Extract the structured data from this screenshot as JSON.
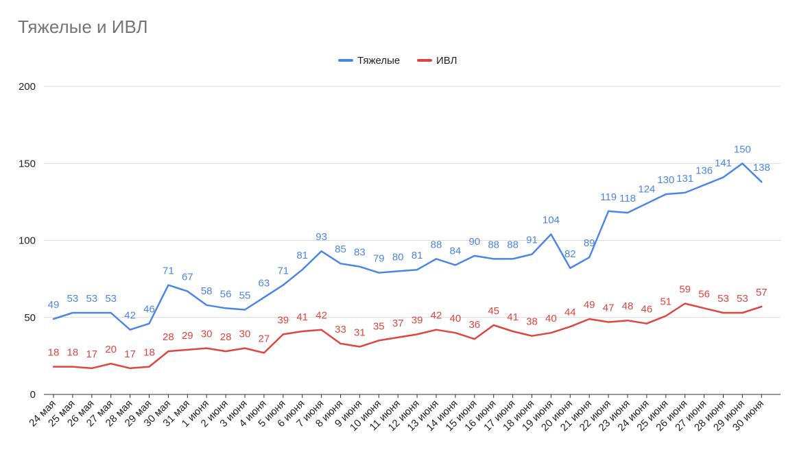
{
  "chart_data": {
    "type": "line",
    "title": "Тяжелые и ИВЛ",
    "xlabel": "",
    "ylabel": "",
    "ylim": [
      0,
      200
    ],
    "yticks": [
      0,
      50,
      100,
      150,
      200
    ],
    "grid": true,
    "legend_position": "top",
    "categories": [
      "24 мая",
      "25 мая",
      "26 мая",
      "27 мая",
      "28 мая",
      "29 мая",
      "30 мая",
      "31 мая",
      "1 июня",
      "2 июня",
      "3 июня",
      "4 июня",
      "5 июня",
      "6 июня",
      "7 июня",
      "8 июня",
      "9 июня",
      "10 июня",
      "11 июня",
      "12 июня",
      "13 июня",
      "14 июня",
      "15 июня",
      "16 июня",
      "17 июня",
      "18 июня",
      "19 июня",
      "20 июня",
      "21 июня",
      "22 июня",
      "23 июня",
      "24 июня",
      "25 июня",
      "26 июня",
      "27 июня",
      "28 июня",
      "29 июня",
      "30 июня"
    ],
    "series": [
      {
        "name": "Тяжелые",
        "color": "#4a86e8",
        "values": [
          49,
          53,
          53,
          53,
          42,
          46,
          71,
          67,
          58,
          56,
          55,
          63,
          71,
          81,
          93,
          85,
          83,
          79,
          80,
          81,
          88,
          84,
          90,
          88,
          88,
          91,
          104,
          82,
          89,
          119,
          118,
          124,
          130,
          131,
          136,
          141,
          150,
          138
        ],
        "labels_shown": [
          true,
          true,
          true,
          true,
          true,
          true,
          true,
          true,
          true,
          true,
          true,
          true,
          true,
          true,
          true,
          true,
          true,
          true,
          true,
          true,
          true,
          true,
          true,
          true,
          true,
          true,
          true,
          true,
          true,
          true,
          true,
          true,
          true,
          true,
          true,
          true,
          true,
          true
        ]
      },
      {
        "name": "ИВЛ",
        "color": "#e0443e",
        "values": [
          18,
          18,
          17,
          20,
          17,
          18,
          28,
          29,
          30,
          28,
          30,
          27,
          39,
          41,
          42,
          33,
          31,
          35,
          37,
          39,
          42,
          40,
          36,
          45,
          41,
          38,
          40,
          44,
          49,
          47,
          48,
          46,
          51,
          59,
          56,
          53,
          53,
          57
        ],
        "labels_shown": [
          true,
          true,
          true,
          true,
          true,
          true,
          true,
          true,
          true,
          true,
          true,
          true,
          true,
          true,
          true,
          true,
          true,
          true,
          true,
          true,
          true,
          true,
          true,
          true,
          true,
          true,
          true,
          true,
          true,
          true,
          true,
          true,
          true,
          true,
          true,
          true,
          true,
          true
        ]
      }
    ]
  }
}
